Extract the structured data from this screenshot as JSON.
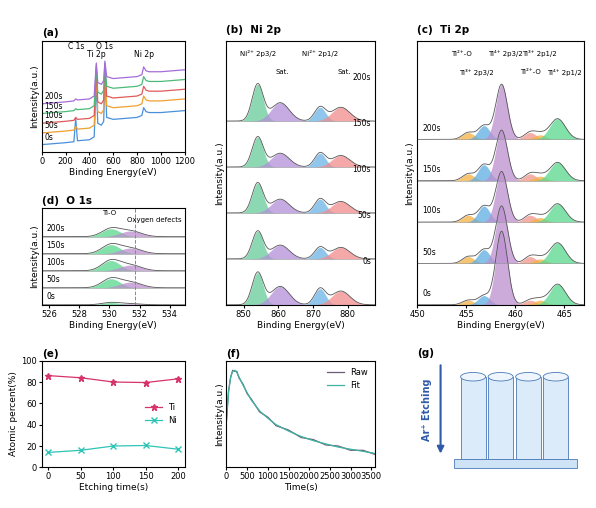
{
  "chart_data": [
    {
      "type": "line",
      "panel_label": "(a)",
      "xlabel": "Binding Energy(eV)",
      "ylabel": "Intensity(a.u.)",
      "xlim": [
        0,
        1200
      ],
      "xticks": [
        0,
        200,
        400,
        600,
        800,
        1000,
        1200
      ],
      "ylim": [
        0,
        115
      ],
      "tick_labels": "x",
      "x": [
        0,
        100,
        200,
        270,
        285,
        300,
        400,
        440,
        458,
        470,
        500,
        520,
        530,
        545,
        600,
        700,
        800,
        840,
        855,
        875,
        900,
        1000,
        1100,
        1200
      ],
      "series": [
        {
          "name": "0s",
          "color": "#4a90d9",
          "values": [
            8,
            9,
            10,
            11,
            35,
            12,
            13,
            16,
            72,
            30,
            28,
            32,
            80,
            36,
            34,
            35,
            36,
            38,
            46,
            42,
            41,
            41,
            42,
            43
          ]
        },
        {
          "name": "50s",
          "color": "#f0a030",
          "values": [
            20,
            21,
            22,
            23,
            27,
            24,
            25,
            28,
            82,
            42,
            40,
            44,
            88,
            48,
            46,
            47,
            48,
            50,
            58,
            54,
            53,
            53,
            54,
            55
          ]
        },
        {
          "name": "100s",
          "color": "#e05a5a",
          "values": [
            30,
            31,
            32,
            33,
            36,
            34,
            35,
            38,
            86,
            52,
            50,
            54,
            90,
            58,
            56,
            57,
            58,
            60,
            68,
            64,
            63,
            63,
            64,
            65
          ]
        },
        {
          "name": "150s",
          "color": "#4cbb7a",
          "values": [
            40,
            41,
            42,
            43,
            45,
            44,
            45,
            48,
            90,
            62,
            60,
            64,
            92,
            68,
            66,
            67,
            68,
            70,
            78,
            74,
            73,
            73,
            74,
            75
          ]
        },
        {
          "name": "200s",
          "color": "#a66cd9",
          "values": [
            50,
            51,
            52,
            53,
            55,
            54,
            55,
            58,
            92,
            72,
            70,
            74,
            94,
            78,
            76,
            77,
            78,
            80,
            88,
            84,
            83,
            83,
            84,
            85
          ]
        }
      ],
      "annotations": [
        {
          "text": "C 1s",
          "x": 285
        },
        {
          "text": "Ti 2p",
          "x": 458
        },
        {
          "text": "O 1s",
          "x": 530
        },
        {
          "text": "Ni 2p",
          "x": 855
        }
      ]
    },
    {
      "type": "area",
      "panel_label": "(b)",
      "title": "Ni 2p",
      "xlabel": "Binding Energy(eV)",
      "ylabel": "Intensity(a.u.)",
      "xlim": [
        845,
        888
      ],
      "xticks": [
        850,
        860,
        870,
        880
      ],
      "ylim": [
        0,
        115
      ],
      "tick_labels": "x",
      "series": [
        {
          "name": "0s",
          "offset": 0,
          "components": [
            {
              "center": 854,
              "height": 14,
              "width": 1.6,
              "color": "#66cc99"
            },
            {
              "center": 860.5,
              "height": 8,
              "width": 2.6,
              "color": "#b38fd9"
            },
            {
              "center": 872,
              "height": 7,
              "width": 1.6,
              "color": "#6cb3e6"
            },
            {
              "center": 878,
              "height": 6,
              "width": 2.6,
              "color": "#f28b8b"
            }
          ]
        },
        {
          "name": "50s",
          "offset": 20,
          "components": [
            {
              "center": 854,
              "height": 12,
              "width": 1.6,
              "color": "#66cc99"
            },
            {
              "center": 860.5,
              "height": 6,
              "width": 2.6,
              "color": "#b38fd9"
            },
            {
              "center": 872,
              "height": 5,
              "width": 1.6,
              "color": "#6cb3e6"
            },
            {
              "center": 878,
              "height": 5,
              "width": 2.6,
              "color": "#f28b8b"
            }
          ]
        },
        {
          "name": "100s",
          "offset": 40,
          "components": [
            {
              "center": 854,
              "height": 13,
              "width": 1.6,
              "color": "#66cc99"
            },
            {
              "center": 860.5,
              "height": 6,
              "width": 2.6,
              "color": "#b38fd9"
            },
            {
              "center": 872,
              "height": 6,
              "width": 1.6,
              "color": "#6cb3e6"
            },
            {
              "center": 878,
              "height": 5,
              "width": 2.6,
              "color": "#f28b8b"
            }
          ]
        },
        {
          "name": "150s",
          "offset": 60,
          "components": [
            {
              "center": 854,
              "height": 13,
              "width": 1.6,
              "color": "#66cc99"
            },
            {
              "center": 860.5,
              "height": 6,
              "width": 2.6,
              "color": "#b38fd9"
            },
            {
              "center": 872,
              "height": 6,
              "width": 1.6,
              "color": "#6cb3e6"
            },
            {
              "center": 878,
              "height": 5,
              "width": 2.6,
              "color": "#f28b8b"
            }
          ]
        },
        {
          "name": "200s",
          "offset": 80,
          "components": [
            {
              "center": 854,
              "height": 16,
              "width": 1.6,
              "color": "#66cc99"
            },
            {
              "center": 860.5,
              "height": 8,
              "width": 2.6,
              "color": "#b38fd9"
            },
            {
              "center": 872,
              "height": 6,
              "width": 1.6,
              "color": "#6cb3e6"
            },
            {
              "center": 878,
              "height": 6,
              "width": 2.6,
              "color": "#f28b8b"
            }
          ]
        }
      ],
      "annotations": [
        {
          "text": "Ni²⁺ 2p3/2",
          "x": 854
        },
        {
          "text": "Sat.",
          "x": 861
        },
        {
          "text": "Ni²⁺ 2p1/2",
          "x": 872
        },
        {
          "text": "Sat.",
          "x": 879
        }
      ]
    },
    {
      "type": "area",
      "panel_label": "(c)",
      "title": "Ti 2p",
      "xlabel": "Binding Energy(eV)",
      "ylabel": "Intensity(a.u.)",
      "xlim": [
        450,
        467
      ],
      "xticks": [
        450,
        455,
        460,
        465
      ],
      "ylim": [
        0,
        115
      ],
      "tick_labels": "x",
      "series": [
        {
          "name": "0s",
          "offset": 0,
          "components": [
            {
              "center": 455.2,
              "height": 2,
              "width": 0.6,
              "color": "#f5b041"
            },
            {
              "center": 456.8,
              "height": 4,
              "width": 0.6,
              "color": "#5dade2"
            },
            {
              "center": 458.6,
              "height": 32,
              "width": 0.6,
              "color": "#bb8fce"
            },
            {
              "center": 461.5,
              "height": 2,
              "width": 0.6,
              "color": "#f1948a"
            },
            {
              "center": 462.5,
              "height": 2,
              "width": 0.6,
              "color": "#f5b041"
            },
            {
              "center": 464.3,
              "height": 9,
              "width": 0.8,
              "color": "#58d68d"
            }
          ]
        },
        {
          "name": "50s",
          "offset": 18,
          "components": [
            {
              "center": 455.2,
              "height": 3,
              "width": 0.6,
              "color": "#f5b041"
            },
            {
              "center": 456.8,
              "height": 6,
              "width": 0.6,
              "color": "#5dade2"
            },
            {
              "center": 458.6,
              "height": 25,
              "width": 0.6,
              "color": "#bb8fce"
            },
            {
              "center": 461.5,
              "height": 3,
              "width": 0.6,
              "color": "#f1948a"
            },
            {
              "center": 462.5,
              "height": 2,
              "width": 0.6,
              "color": "#f5b041"
            },
            {
              "center": 464.3,
              "height": 9,
              "width": 0.8,
              "color": "#58d68d"
            }
          ]
        },
        {
          "name": "100s",
          "offset": 36,
          "components": [
            {
              "center": 455.2,
              "height": 3,
              "width": 0.6,
              "color": "#f5b041"
            },
            {
              "center": 456.8,
              "height": 7,
              "width": 0.6,
              "color": "#5dade2"
            },
            {
              "center": 458.6,
              "height": 22,
              "width": 0.6,
              "color": "#bb8fce"
            },
            {
              "center": 461.5,
              "height": 3,
              "width": 0.6,
              "color": "#f1948a"
            },
            {
              "center": 462.5,
              "height": 2,
              "width": 0.6,
              "color": "#f5b041"
            },
            {
              "center": 464.3,
              "height": 8,
              "width": 0.8,
              "color": "#58d68d"
            }
          ]
        },
        {
          "name": "150s",
          "offset": 54,
          "components": [
            {
              "center": 455.2,
              "height": 3,
              "width": 0.6,
              "color": "#f5b041"
            },
            {
              "center": 456.8,
              "height": 7,
              "width": 0.6,
              "color": "#5dade2"
            },
            {
              "center": 458.6,
              "height": 22,
              "width": 0.6,
              "color": "#bb8fce"
            },
            {
              "center": 461.5,
              "height": 3,
              "width": 0.6,
              "color": "#f1948a"
            },
            {
              "center": 462.5,
              "height": 2,
              "width": 0.6,
              "color": "#f5b041"
            },
            {
              "center": 464.3,
              "height": 8,
              "width": 0.8,
              "color": "#58d68d"
            }
          ]
        },
        {
          "name": "200s",
          "offset": 72,
          "components": [
            {
              "center": 455.2,
              "height": 3,
              "width": 0.6,
              "color": "#f5b041"
            },
            {
              "center": 456.8,
              "height": 6,
              "width": 0.6,
              "color": "#5dade2"
            },
            {
              "center": 458.6,
              "height": 24,
              "width": 0.6,
              "color": "#bb8fce"
            },
            {
              "center": 461.5,
              "height": 3,
              "width": 0.6,
              "color": "#f1948a"
            },
            {
              "center": 462.5,
              "height": 2,
              "width": 0.6,
              "color": "#f5b041"
            },
            {
              "center": 464.3,
              "height": 9,
              "width": 0.8,
              "color": "#58d68d"
            }
          ]
        }
      ],
      "annotations": [
        {
          "text": "Ti²⁺-O",
          "x": 454.5
        },
        {
          "text": "Ti³⁺ 2p3/2",
          "x": 456
        },
        {
          "text": "Ti⁴⁺ 2p3/2",
          "x": 459
        },
        {
          "text": "Ti²⁺-O",
          "x": 461.5
        },
        {
          "text": "Ti³⁺ 2p1/2",
          "x": 462.5
        },
        {
          "text": "Ti⁴⁺ 2p1/2",
          "x": 465
        }
      ]
    },
    {
      "type": "area",
      "panel_label": "(d)",
      "title": "O 1s",
      "xlabel": "Binding Energy(eV)",
      "ylabel": "Intensity(a.u.)",
      "xlim": [
        525.5,
        535
      ],
      "xticks": [
        526,
        528,
        530,
        532,
        534
      ],
      "ylim": [
        0,
        85
      ],
      "tick_labels": "x",
      "reference_line": 531.7,
      "series": [
        {
          "name": "0s",
          "offset": 0,
          "components": [
            {
              "center": 530.1,
              "height": 2,
              "width": 0.6,
              "color": "#58d68d"
            },
            {
              "center": 531.4,
              "height": 1,
              "width": 0.7,
              "color": "#bb8fce"
            }
          ]
        },
        {
          "name": "50s",
          "offset": 15,
          "components": [
            {
              "center": 530.1,
              "height": 8,
              "width": 0.6,
              "color": "#58d68d"
            },
            {
              "center": 531.4,
              "height": 5,
              "width": 0.7,
              "color": "#bb8fce"
            }
          ]
        },
        {
          "name": "100s",
          "offset": 30,
          "components": [
            {
              "center": 530.1,
              "height": 9,
              "width": 0.6,
              "color": "#58d68d"
            },
            {
              "center": 531.4,
              "height": 5,
              "width": 0.7,
              "color": "#bb8fce"
            }
          ]
        },
        {
          "name": "150s",
          "offset": 45,
          "components": [
            {
              "center": 530.1,
              "height": 8,
              "width": 0.6,
              "color": "#58d68d"
            },
            {
              "center": 531.4,
              "height": 5,
              "width": 0.7,
              "color": "#bb8fce"
            }
          ]
        },
        {
          "name": "200s",
          "offset": 60,
          "components": [
            {
              "center": 530.1,
              "height": 7,
              "width": 0.6,
              "color": "#58d68d"
            },
            {
              "center": 531.4,
              "height": 5,
              "width": 0.7,
              "color": "#bb8fce"
            }
          ]
        }
      ],
      "annotations": [
        {
          "text": "Ti-O",
          "x": 530
        },
        {
          "text": "Oxygen defects",
          "x": 533
        }
      ]
    },
    {
      "type": "line",
      "panel_label": "(e)",
      "xlabel": "Etching time(s)",
      "ylabel": "Atomic percent(%)",
      "xlim": [
        -10,
        210
      ],
      "xticks": [
        0,
        50,
        100,
        150,
        200
      ],
      "ylim": [
        0,
        100
      ],
      "yticks": [
        0,
        20,
        40,
        60,
        80,
        100
      ],
      "legend": "center right",
      "x": [
        0,
        50,
        100,
        150,
        200
      ],
      "series": [
        {
          "name": "Ti",
          "color": "#d6336c",
          "marker": "star",
          "values": [
            86,
            84,
            80,
            79.5,
            83
          ]
        },
        {
          "name": "Ni",
          "color": "#2ec4b6",
          "marker": "x",
          "values": [
            14,
            16,
            20,
            20.5,
            17
          ]
        }
      ]
    },
    {
      "type": "line",
      "panel_label": "(f)",
      "xlabel": "Time(s)",
      "ylabel": "Intensity(a.u.)",
      "xlim": [
        0,
        3600
      ],
      "xticks": [
        0,
        500,
        1000,
        1500,
        2000,
        2500,
        3000,
        3500
      ],
      "ylim": [
        0,
        100
      ],
      "tick_labels": "x",
      "legend": "upper right",
      "x": [
        0,
        50,
        100,
        150,
        200,
        250,
        300,
        400,
        500,
        600,
        800,
        1000,
        1200,
        1500,
        1800,
        2100,
        2400,
        2700,
        3000,
        3300,
        3600
      ],
      "series": [
        {
          "name": "Raw",
          "color": "#6b5b7b",
          "values": [
            44,
            72,
            84,
            91,
            90,
            90,
            84,
            78,
            69,
            64,
            52,
            47,
            39,
            35,
            28,
            26,
            21,
            20,
            16,
            16,
            12
          ]
        },
        {
          "name": "Fit",
          "color": "#3cb4a0",
          "values": [
            45,
            70,
            85,
            90,
            91,
            89,
            85,
            77,
            70,
            63,
            53,
            46,
            40,
            34,
            29,
            25,
            22,
            19,
            17,
            15,
            13
          ]
        }
      ]
    }
  ],
  "diagram": {
    "panel_label": "(g)",
    "label": "Ar⁺ Etching"
  }
}
